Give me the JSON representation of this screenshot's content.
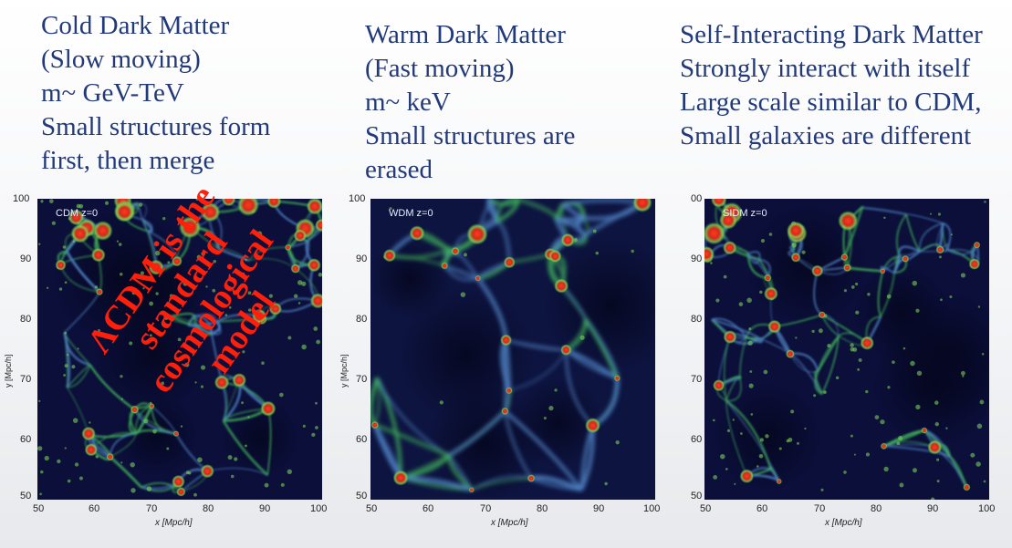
{
  "columns": [
    {
      "lines": [
        "Cold Dark Matter",
        "(Slow moving)",
        "m~ GeV-TeV",
        "Small structures form",
        "first, then merge"
      ],
      "panel_label": "CDM z=0"
    },
    {
      "lines": [
        "Warm Dark Matter",
        "(Fast moving)",
        "m~ keV",
        "Small structures are",
        "erased"
      ],
      "panel_label": "WDM z=0"
    },
    {
      "lines": [
        "Self-Interacting Dark Matter",
        "Strongly interact with itself",
        "Large scale similar to CDM,",
        "Small galaxies are different"
      ],
      "panel_label": "SIDM z=0"
    }
  ],
  "axes": {
    "xlabel": "x [Mpc/h]",
    "ylabel": "y [Mpc/h]",
    "x_ticks": [
      "50",
      "60",
      "70",
      "80",
      "90",
      "100"
    ],
    "y_ticks": [
      "100",
      "90",
      "80",
      "70",
      "60",
      "50"
    ],
    "y_ticks_partial": [
      "00",
      "90",
      "80",
      "70",
      "60",
      "50"
    ]
  },
  "overlay": {
    "lines": [
      "ΛCDM is the",
      "standard",
      "cosmological",
      "model"
    ],
    "color": "#ff1f0a"
  },
  "colors": {
    "text": "#22397a",
    "sim_background": "#0a0d33",
    "filament": "#3fae5a",
    "halo": "#d42a1e"
  }
}
